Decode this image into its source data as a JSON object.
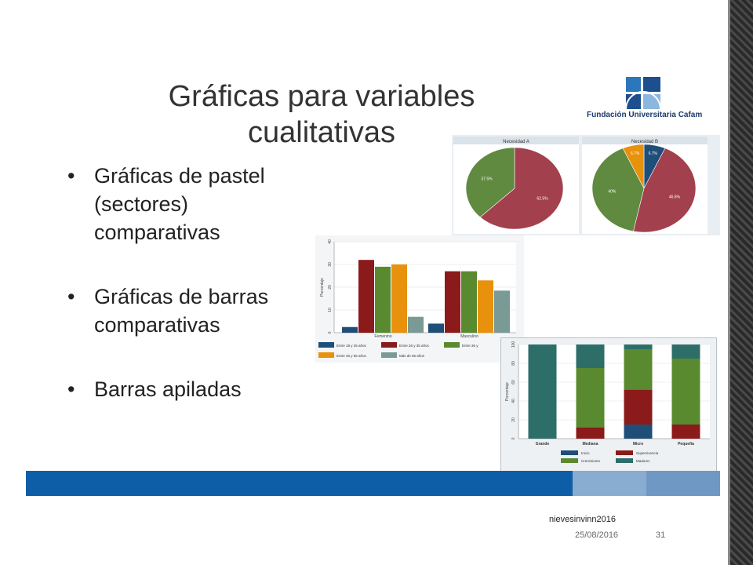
{
  "slide": {
    "title": "Gráficas para variables\ncualitativas",
    "logo_text": "Fundación Universitaria Cafam",
    "bullets": [
      "Gráficas de pastel\n(sectores)\ncomparativas",
      "Gráficas de barras\ncomparativas",
      "Barras apiladas"
    ],
    "footer": {
      "author": "nievesinvinn2016",
      "date": "25/08/2016",
      "page": "31"
    }
  },
  "colors": {
    "navy": "#1f4e79",
    "red": "#8b1a1a",
    "green": "#5a8a2f",
    "orange": "#e8910c",
    "gray": "#7a9a96",
    "teal": "#2e6e68",
    "pie_red": "#a3404d",
    "pie_green": "#5f8a3f"
  },
  "chart_data": [
    {
      "type": "pie",
      "panels": [
        {
          "title": "Necesidad A",
          "slices": [
            {
              "label": "62.5%",
              "value": 62.5,
              "color": "#a3404d"
            },
            {
              "label": "37.5%",
              "value": 37.5,
              "color": "#5f8a3f"
            }
          ]
        },
        {
          "title": "Necesidad B",
          "slices": [
            {
              "label": "6.7%",
              "value": 6.7,
              "color": "#1f4e79"
            },
            {
              "label": "46.6%",
              "value": 46.6,
              "color": "#a3404d"
            },
            {
              "label": "40%",
              "value": 40,
              "color": "#5f8a3f"
            },
            {
              "label": "6.7%",
              "value": 6.7,
              "color": "#e8910c"
            }
          ]
        }
      ]
    },
    {
      "type": "bar",
      "categories": [
        "Femenino",
        "Masculino"
      ],
      "ylabel": "Porcentaje",
      "ylim": [
        0,
        40
      ],
      "yticks": [
        "0",
        "10",
        "20",
        "30",
        "40"
      ],
      "series": [
        {
          "name": "Entre 18 y 25 años",
          "values": [
            2.5,
            4
          ],
          "color": "#1f4e79"
        },
        {
          "name": "Entre 26 y 35 años",
          "values": [
            32,
            27
          ],
          "color": "#8b1a1a"
        },
        {
          "name": "Entre 36 y",
          "values": [
            29,
            27
          ],
          "color": "#5a8a2f"
        },
        {
          "name": "Entre 46 y 55 años",
          "values": [
            30,
            23
          ],
          "color": "#e8910c"
        },
        {
          "name": "Más de 55 años",
          "values": [
            7,
            18.5
          ],
          "color": "#7a9a96"
        }
      ]
    },
    {
      "type": "bar",
      "stacked": true,
      "categories": [
        "Grande",
        "Mediana",
        "Micro",
        "Pequeña"
      ],
      "ylabel": "Porcentaje",
      "ylim": [
        0,
        100
      ],
      "yticks": [
        "0",
        "20",
        "40",
        "60",
        "80",
        "100"
      ],
      "series": [
        {
          "name": "Inicio",
          "values": [
            0,
            0,
            15,
            0
          ],
          "color": "#1f4e79"
        },
        {
          "name": "Supervivencia",
          "values": [
            0,
            12,
            37,
            15
          ],
          "color": "#8b1a1a"
        },
        {
          "name": "Crecimiento",
          "values": [
            0,
            63,
            43,
            70
          ],
          "color": "#5a8a2f"
        },
        {
          "name": "Madurez",
          "values": [
            100,
            25,
            5,
            15
          ],
          "color": "#2e6e68"
        }
      ]
    }
  ]
}
